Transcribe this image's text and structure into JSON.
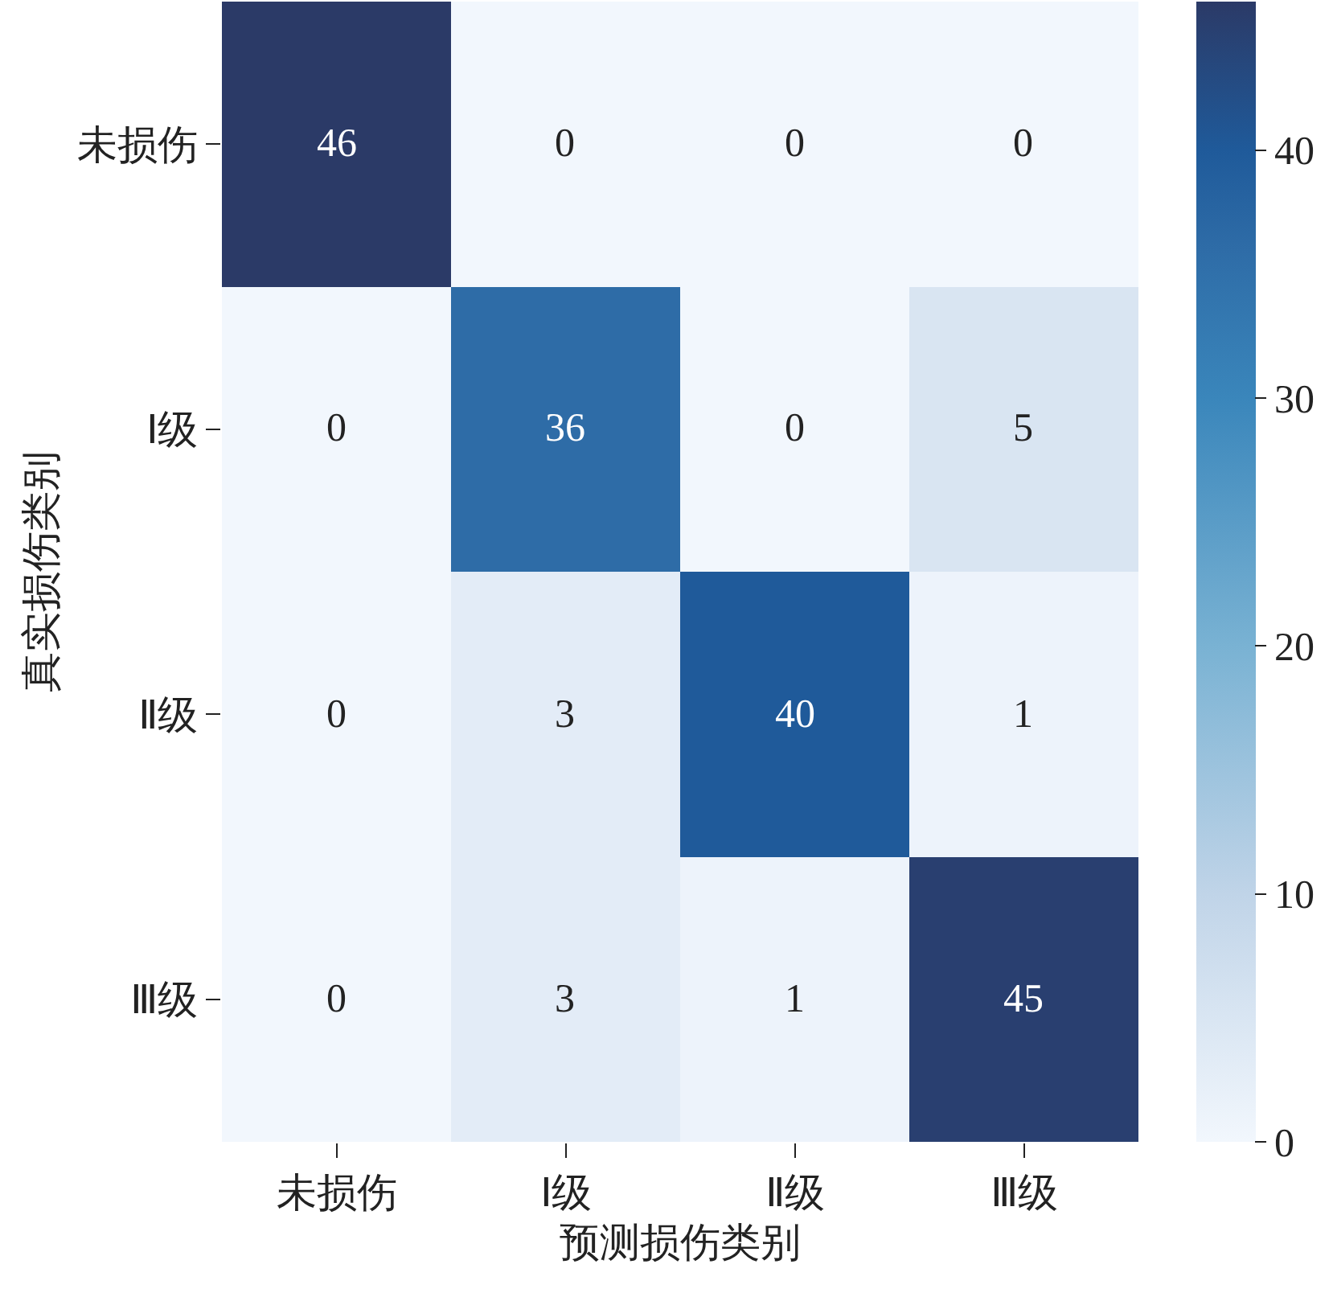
{
  "chart_data": {
    "type": "heatmap",
    "xlabel": "预测损伤类别",
    "ylabel": "真实损伤类别",
    "categories": [
      "未损伤",
      "Ⅰ级",
      "Ⅱ级",
      "Ⅲ级"
    ],
    "y_categories": [
      "未损伤",
      "Ⅰ级",
      "Ⅱ级",
      "Ⅲ级"
    ],
    "cells": [
      [
        46,
        0,
        0,
        0
      ],
      [
        0,
        36,
        0,
        5
      ],
      [
        0,
        3,
        40,
        1
      ],
      [
        0,
        3,
        1,
        45
      ]
    ],
    "clim": [
      0,
      46
    ],
    "cticks": [
      0,
      10,
      20,
      30,
      40
    ],
    "data_labels": true
  }
}
